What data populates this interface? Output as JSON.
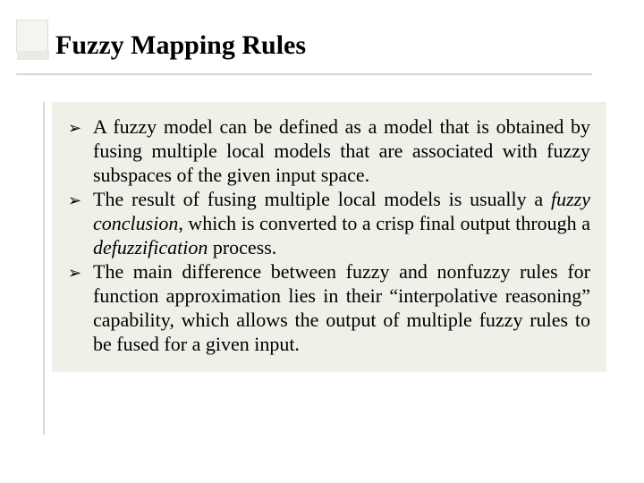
{
  "slide": {
    "title": "Fuzzy Mapping Rules",
    "bullets": {
      "marker": "➢",
      "items": [
        {
          "segments": [
            {
              "t": "A fuzzy model can be defined as a model that is obtained by fusing multiple local models that are associated with fuzzy subspaces of the given input space.",
              "i": false
            }
          ]
        },
        {
          "segments": [
            {
              "t": "The result of fusing multiple local models is usually a ",
              "i": false
            },
            {
              "t": "fuzzy conclusion",
              "i": true
            },
            {
              "t": ", which is converted to a crisp final output through a ",
              "i": false
            },
            {
              "t": "defuzzification",
              "i": true
            },
            {
              "t": " process.",
              "i": false
            }
          ]
        },
        {
          "segments": [
            {
              "t": "The main difference between fuzzy and nonfuzzy rules for function approximation lies in their “interpolative reasoning” capability, which allows the output of multiple fuzzy rules to be fused for a given input.",
              "i": false
            }
          ]
        }
      ]
    },
    "colors": {
      "background": "#ffffff",
      "body_box": "#f0efe8",
      "ornament": "#f5f4ef",
      "underline": "#d7d6cf",
      "text": "#000000"
    },
    "fonts": {
      "title_size_pt": 30,
      "body_size_pt": 22,
      "family": "Times New Roman"
    }
  }
}
